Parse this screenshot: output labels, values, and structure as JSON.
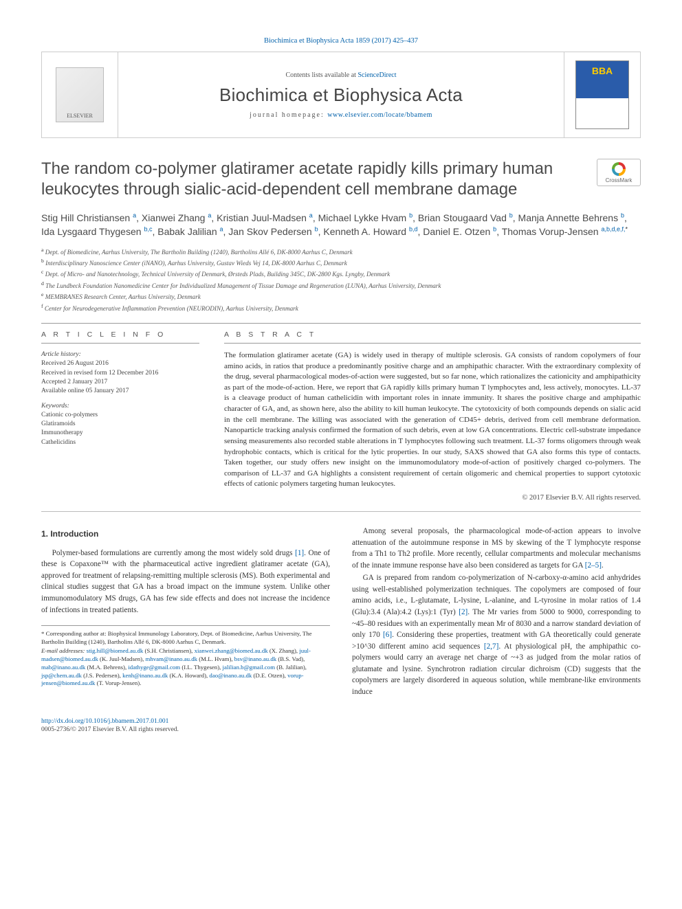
{
  "top_citation": "Biochimica et Biophysica Acta 1859 (2017) 425–437",
  "header": {
    "sd_prefix": "Contents lists available at ",
    "sd_link": "ScienceDirect",
    "journal": "Biochimica et Biophysica Acta",
    "homepage_prefix": "journal homepage: ",
    "homepage_link": "www.elsevier.com/locate/bbamem",
    "elsevier": "ELSEVIER"
  },
  "title": "The random co-polymer glatiramer acetate rapidly kills primary human leukocytes through sialic-acid-dependent cell membrane damage",
  "crossmark": "CrossMark",
  "authors_html": "Stig Hill Christiansen <sup>a</sup>, Xianwei Zhang <sup>a</sup>, Kristian Juul-Madsen <sup>a</sup>, Michael Lykke Hvam <sup>b</sup>, Brian Stougaard Vad <sup>b</sup>, Manja Annette Behrens <sup>b</sup>, Ida Lysgaard Thygesen <sup>b,c</sup>, Babak Jalilian <sup>a</sup>, Jan Skov Pedersen <sup>b</sup>, Kenneth A. Howard <sup>b,d</sup>, Daniel E. Otzen <sup>b</sup>, Thomas Vorup-Jensen <sup>a,b,d,e,f,</sup><sup class=\"ast\">*</sup>",
  "affiliations": [
    "a  Dept. of Biomedicine, Aarhus University, The Bartholin Building (1240), Bartholins Allé 6, DK-8000 Aarhus C, Denmark",
    "b  Interdisciplinary Nanoscience Center (iNANO), Aarhus University, Gustav Wieds Vej 14, DK-8000 Aarhus C, Denmark",
    "c  Dept. of Micro- and Nanotechnology, Technical University of Denmark, Ørsteds Plads, Building 345C, DK-2800 Kgs. Lyngby, Denmark",
    "d  The Lundbeck Foundation Nanomedicine Center for Individualized Management of Tissue Damage and Regeneration (LUNA), Aarhus University, Denmark",
    "e  MEMBRANES Research Center, Aarhus University, Denmark",
    "f  Center for Neurodegenerative Inflammation Prevention (NEURODIN), Aarhus University, Denmark"
  ],
  "article_info": {
    "label": "A R T I C L E   I N F O",
    "history_head": "Article history:",
    "history": [
      "Received 26 August 2016",
      "Received in revised form 12 December 2016",
      "Accepted 2 January 2017",
      "Available online 05 January 2017"
    ],
    "keywords_head": "Keywords:",
    "keywords": [
      "Cationic co-polymers",
      "Glatiramoids",
      "Immunotherapy",
      "Cathelicidins"
    ]
  },
  "abstract": {
    "label": "A B S T R A C T",
    "text": "The formulation glatiramer acetate (GA) is widely used in therapy of multiple sclerosis. GA consists of random copolymers of four amino acids, in ratios that produce a predominantly positive charge and an amphipathic character. With the extraordinary complexity of the drug, several pharmacological modes-of-action were suggested, but so far none, which rationalizes the cationicity and amphipathicity as part of the mode-of-action. Here, we report that GA rapidly kills primary human T lymphocytes and, less actively, monocytes. LL-37 is a cleavage product of human cathelicidin with important roles in innate immunity. It shares the positive charge and amphipathic character of GA, and, as shown here, also the ability to kill human leukocyte. The cytotoxicity of both compounds depends on sialic acid in the cell membrane. The killing was associated with the generation of CD45+ debris, derived from cell membrane deformation. Nanoparticle tracking analysis confirmed the formation of such debris, even at low GA concentrations. Electric cell-substrate impedance sensing measurements also recorded stable alterations in T lymphocytes following such treatment. LL-37 forms oligomers through weak hydrophobic contacts, which is critical for the lytic properties. In our study, SAXS showed that GA also forms this type of contacts. Taken together, our study offers new insight on the immunomodulatory mode-of-action of positively charged co-polymers. The comparison of LL-37 and GA highlights a consistent requirement of certain oligomeric and chemical properties to support cytotoxic effects of cationic polymers targeting human leukocytes.",
    "copyright": "© 2017 Elsevier B.V. All rights reserved."
  },
  "intro": {
    "heading": "1. Introduction",
    "p1": "Polymer-based formulations are currently among the most widely sold drugs [1]. One of these is Copaxone™ with the pharmaceutical active ingredient glatiramer acetate (GA), approved for treatment of relapsing-remitting multiple sclerosis (MS). Both experimental and clinical studies suggest that GA has a broad impact on the immune system. Unlike other immunomodulatory MS drugs, GA has few side effects and does not increase the incidence of infections in treated patients.",
    "p2": "Among several proposals, the pharmacological mode-of-action appears to involve attenuation of the autoimmune response in MS by skewing of the T lymphocyte response from a Th1 to Th2 profile. More recently, cellular compartments and molecular mechanisms of the innate immune response have also been considered as targets for GA [2–5].",
    "p3": "GA is prepared from random co-polymerization of N-carboxy-α-amino acid anhydrides using well-established polymerization techniques. The copolymers are composed of four amino acids, i.e., L-glutamate, L-lysine, L-alanine, and L-tyrosine in molar ratios of 1.4 (Glu):3.4 (Ala):4.2 (Lys):1 (Tyr) [2]. The Mr varies from 5000 to 9000, corresponding to ~45–80 residues with an experimentally mean Mr of 8030 and a narrow standard deviation of only 170 [6]. Considering these properties, treatment with GA theoretically could generate >10^30 different amino acid sequences [2,7]. At physiological pH, the amphipathic co-polymers would carry an average net charge of ~+3 as judged from the molar ratios of glutamate and lysine. Synchrotron radiation circular dichroism (CD) suggests that the copolymers are largely disordered in aqueous solution, while membrane-like environments induce",
    "ref1": "[1]",
    "ref2": "[2–5]",
    "ref3": "[2]",
    "ref4": "[6]",
    "ref5": "[2,7]"
  },
  "footnote": {
    "star": "* Corresponding author at: Biophysical Immunology Laboratory, Dept. of Biomedicine, Aarhus University, The Bartholin Building (1240), Bartholins Allé 6, DK-8000 Aarhus C, Denmark.",
    "email_label": "E-mail addresses: ",
    "emails": "stig.hill@biomed.au.dk (S.H. Christiansen), xianwei.zhang@biomed.au.dk (X. Zhang), juul-madsen@biomed.au.dk (K. Juul-Madsen), mhvam@inano.au.dk (M.L. Hvam), bsv@inano.au.dk (B.S. Vad), mab@inano.au.dk (M.A. Behrens), idathyge@gmail.com (I.L. Thygesen), jalilian.b@gmail.com (B. Jalilian), jsp@chem.au.dk (J.S. Pedersen), kenh@inano.au.dk (K.A. Howard), dao@inano.au.dk (D.E. Otzen), vorup-jensen@biomed.au.dk (T. Vorup-Jensen)."
  },
  "bottom": {
    "doi": "http://dx.doi.org/10.1016/j.bbamem.2017.01.001",
    "line2": "0005-2736/© 2017 Elsevier B.V. All rights reserved."
  },
  "colors": {
    "link": "#0060aa",
    "text": "#333333",
    "rule": "#999999"
  }
}
